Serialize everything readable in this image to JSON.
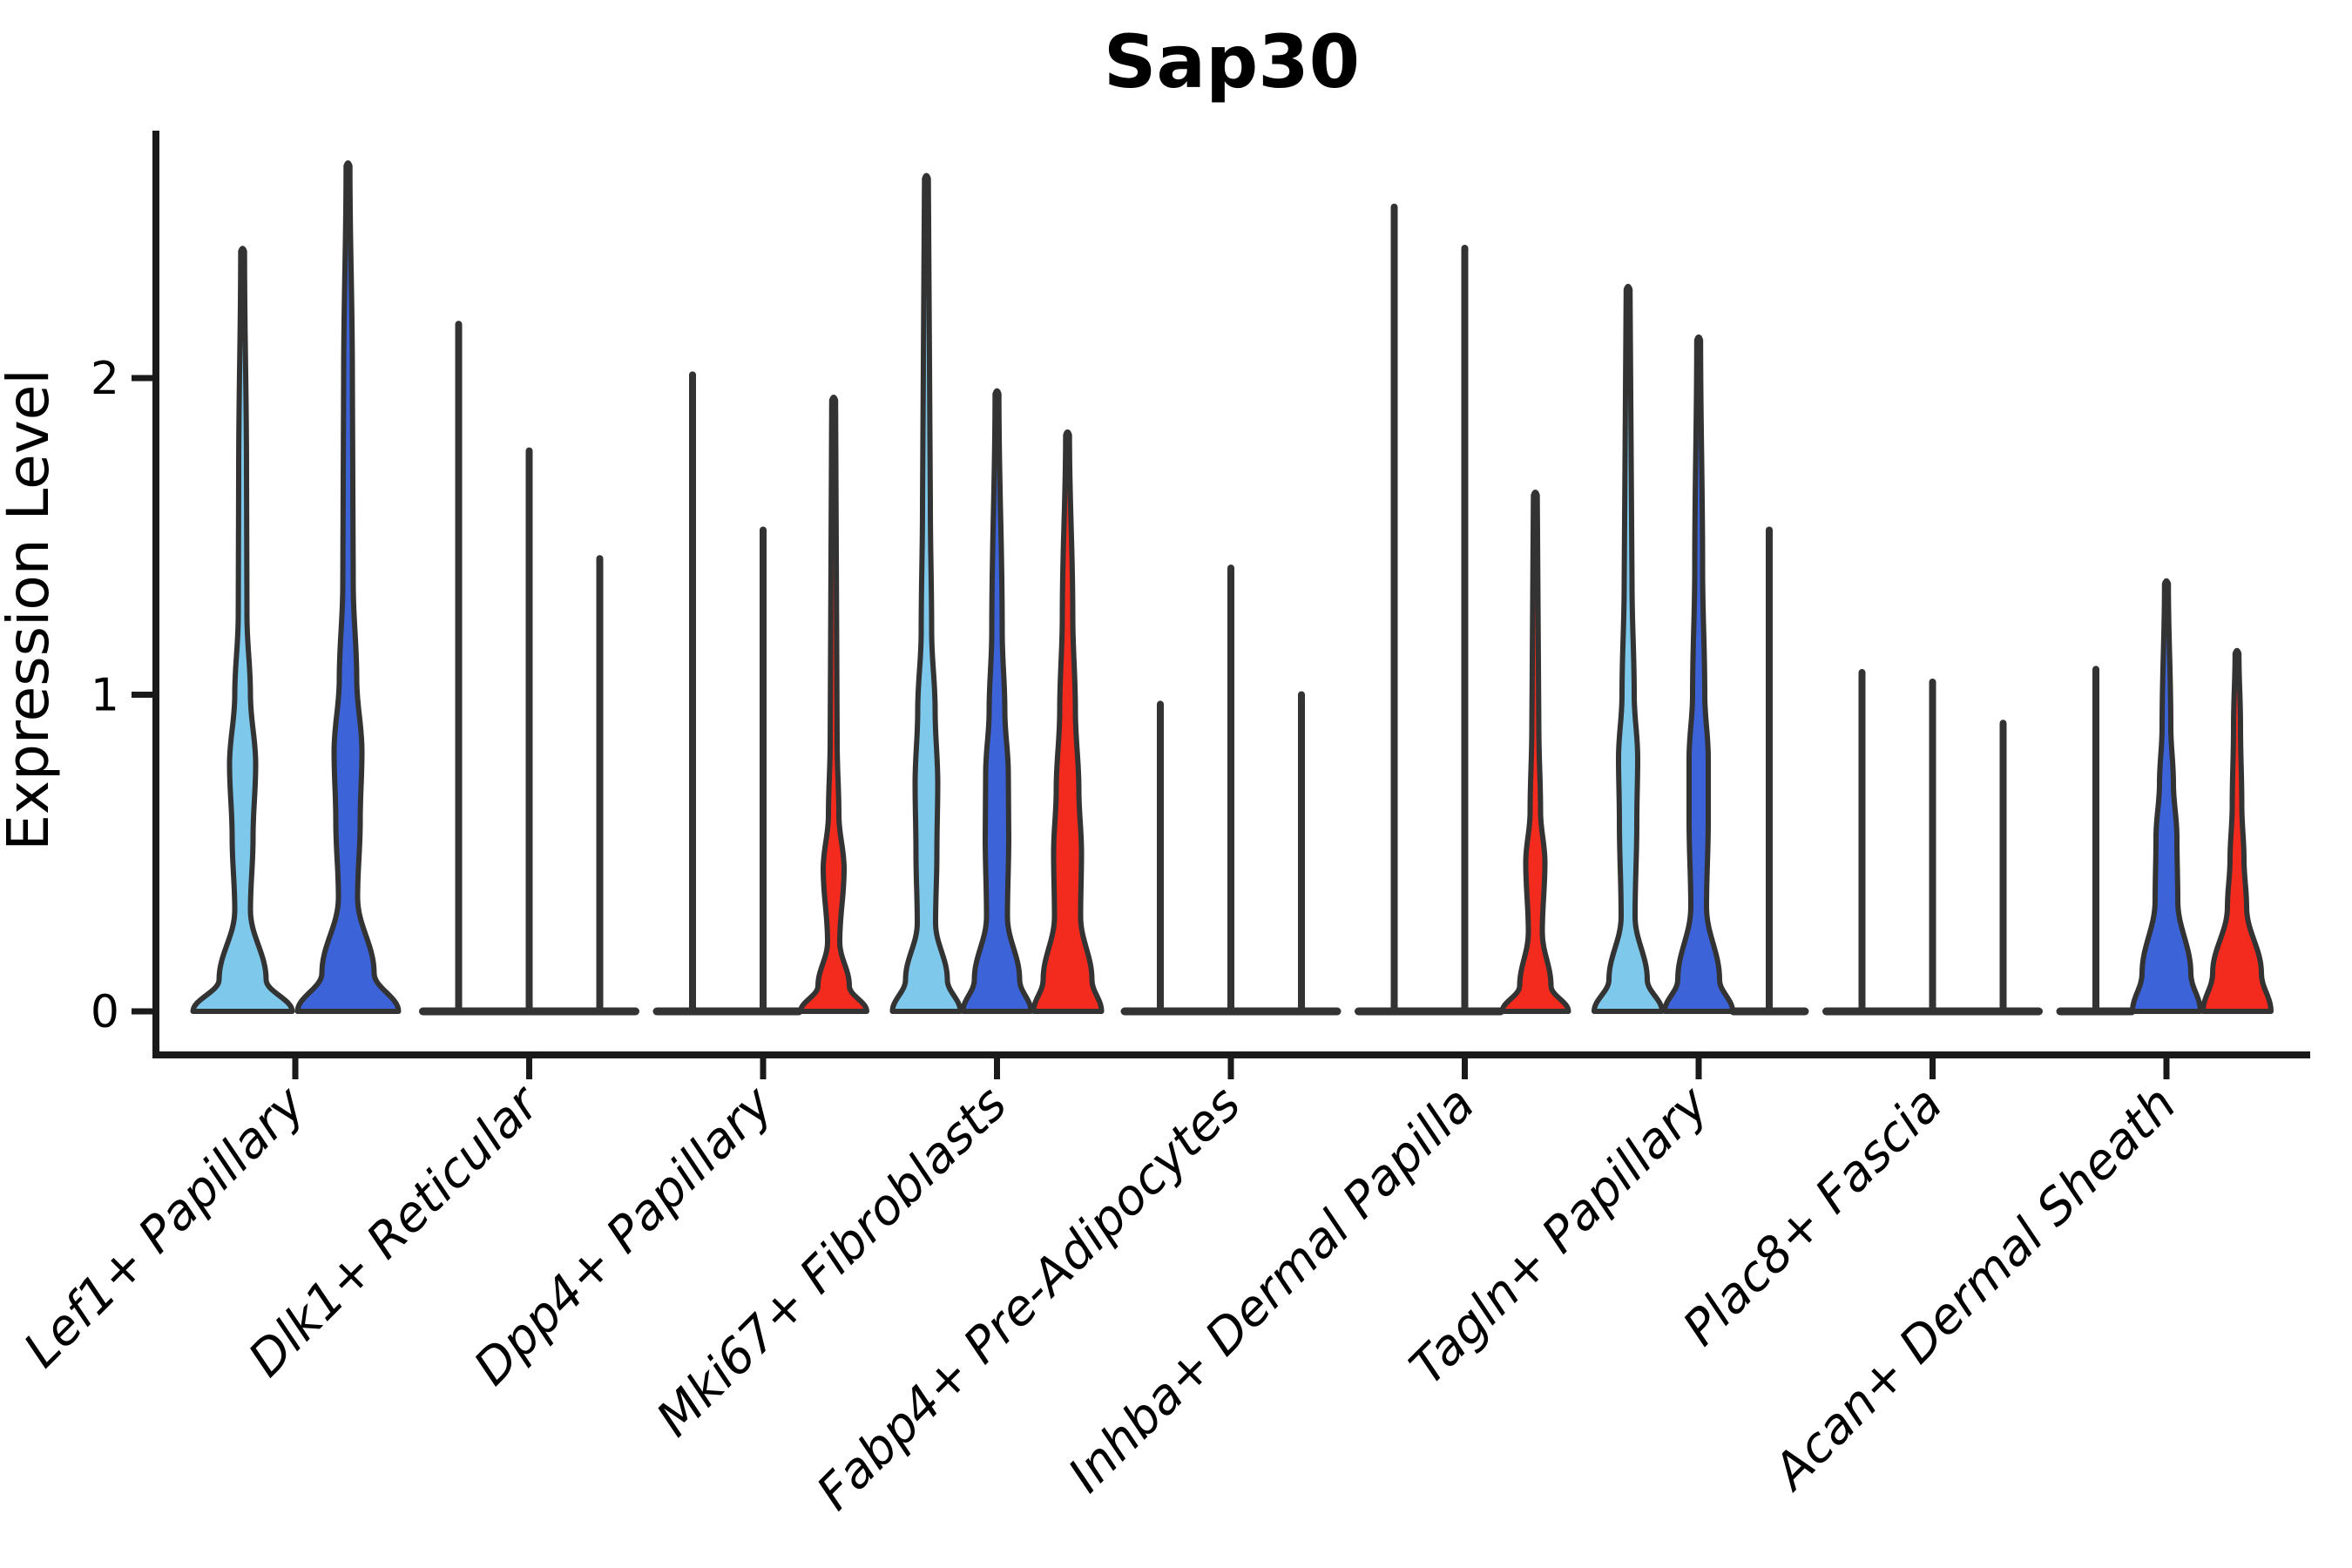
{
  "chart_data": {
    "type": "violin",
    "title": "Sap30",
    "ylabel": "Expression Level",
    "yticks": [
      0,
      1,
      2
    ],
    "ylim": [
      0,
      2.75
    ],
    "grid": false,
    "legend": "none",
    "split_colors": {
      "light_blue": "#7EC9EB",
      "dark_blue": "#3C63D8",
      "red": "#F22B1E"
    },
    "outline_color": "#333333",
    "axis_color": "#1a1a1a",
    "categories": [
      "Lef1+ Papillary",
      "Dlk1+ Reticular",
      "Dpp4+ Papillary",
      "Mki67+ Fibroblasts",
      "Fabp4+ Pre-Adipocytes",
      "Inhba+ Dermal Papilla",
      "Tagln+ Papillary",
      "Plac8+ Fascia",
      "Acan+ Dermal Sheath"
    ],
    "groups": [
      {
        "label": "Lef1+ Papillary",
        "violins": [
          {
            "split": "light_blue",
            "max": 2.4,
            "shape": "body",
            "profile": [
              [
                0,
                57
              ],
              [
                0.1,
                27
              ],
              [
                0.32,
                9
              ],
              [
                0.55,
                12
              ],
              [
                0.78,
                15
              ],
              [
                1.0,
                9
              ],
              [
                1.25,
                5
              ],
              [
                1.7,
                4.5
              ],
              [
                2.4,
                2.2
              ]
            ]
          },
          {
            "split": "dark_blue",
            "max": 2.67,
            "shape": "body",
            "profile": [
              [
                0,
                58
              ],
              [
                0.12,
                30
              ],
              [
                0.36,
                11
              ],
              [
                0.6,
                14
              ],
              [
                0.82,
                16
              ],
              [
                1.05,
                10
              ],
              [
                1.35,
                6
              ],
              [
                2.0,
                5
              ],
              [
                2.67,
                2.2
              ]
            ]
          }
        ]
      },
      {
        "label": "Dlk1+ Reticular",
        "violins": [
          {
            "split": "light_blue",
            "max": 2.17,
            "shape": "collapsed"
          },
          {
            "split": "dark_blue",
            "max": 1.77,
            "shape": "collapsed"
          },
          {
            "split": "red",
            "max": 1.43,
            "shape": "collapsed"
          }
        ]
      },
      {
        "label": "Dpp4+ Papillary",
        "violins": [
          {
            "split": "light_blue",
            "max": 2.01,
            "shape": "collapsed"
          },
          {
            "split": "dark_blue",
            "max": 1.52,
            "shape": "collapsed"
          },
          {
            "split": "red",
            "max": 1.93,
            "shape": "body",
            "profile": [
              [
                0,
                38
              ],
              [
                0.08,
                18
              ],
              [
                0.22,
                7
              ],
              [
                0.45,
                12
              ],
              [
                0.62,
                6
              ],
              [
                0.85,
                4
              ],
              [
                1.93,
                2.2
              ]
            ]
          }
        ]
      },
      {
        "label": "Mki67+ Fibroblasts",
        "violins": [
          {
            "split": "light_blue",
            "max": 2.63,
            "shape": "body",
            "profile": [
              [
                0,
                39
              ],
              [
                0.1,
                24
              ],
              [
                0.28,
                10.5
              ],
              [
                0.5,
                12
              ],
              [
                0.72,
                13
              ],
              [
                0.95,
                10
              ],
              [
                1.2,
                6
              ],
              [
                1.6,
                4.5
              ],
              [
                2.63,
                2.2
              ]
            ]
          },
          {
            "split": "dark_blue",
            "max": 1.95,
            "shape": "body",
            "profile": [
              [
                0,
                39
              ],
              [
                0.1,
                26
              ],
              [
                0.3,
                12
              ],
              [
                0.55,
                13.5
              ],
              [
                0.75,
                13
              ],
              [
                0.95,
                9
              ],
              [
                1.2,
                6
              ],
              [
                1.95,
                2.2
              ]
            ]
          },
          {
            "split": "red",
            "max": 1.82,
            "shape": "body",
            "profile": [
              [
                0,
                39
              ],
              [
                0.1,
                28
              ],
              [
                0.3,
                15
              ],
              [
                0.5,
                16
              ],
              [
                0.7,
                13
              ],
              [
                0.95,
                9
              ],
              [
                1.25,
                6
              ],
              [
                1.82,
                2.2
              ]
            ]
          }
        ]
      },
      {
        "label": "Fabp4+ Pre-Adipocytes",
        "violins": [
          {
            "split": "light_blue",
            "max": 0.97,
            "shape": "collapsed"
          },
          {
            "split": "dark_blue",
            "max": 1.4,
            "shape": "collapsed"
          },
          {
            "split": "red",
            "max": 1.0,
            "shape": "collapsed"
          }
        ]
      },
      {
        "label": "Inhba+ Dermal Papilla",
        "violins": [
          {
            "split": "light_blue",
            "max": 2.54,
            "shape": "collapsed"
          },
          {
            "split": "dark_blue",
            "max": 2.41,
            "shape": "collapsed"
          },
          {
            "split": "red",
            "max": 1.63,
            "shape": "body",
            "profile": [
              [
                0,
                38
              ],
              [
                0.08,
                18
              ],
              [
                0.25,
                8
              ],
              [
                0.47,
                11
              ],
              [
                0.63,
                6
              ],
              [
                0.9,
                4
              ],
              [
                1.63,
                2.2
              ]
            ]
          }
        ]
      },
      {
        "label": "Tagln+ Papillary",
        "violins": [
          {
            "split": "light_blue",
            "max": 2.28,
            "shape": "body",
            "profile": [
              [
                0,
                39
              ],
              [
                0.1,
                22
              ],
              [
                0.3,
                8
              ],
              [
                0.6,
                10
              ],
              [
                0.8,
                11
              ],
              [
                1.0,
                7
              ],
              [
                1.35,
                4.5
              ],
              [
                2.28,
                2.2
              ]
            ]
          },
          {
            "split": "dark_blue",
            "max": 2.12,
            "shape": "body",
            "profile": [
              [
                0,
                39
              ],
              [
                0.1,
                24
              ],
              [
                0.33,
                9
              ],
              [
                0.6,
                11
              ],
              [
                0.8,
                11
              ],
              [
                1.0,
                7
              ],
              [
                1.4,
                4.5
              ],
              [
                2.12,
                2.2
              ]
            ]
          },
          {
            "split": "red",
            "max": 1.52,
            "shape": "collapsed"
          }
        ]
      },
      {
        "label": "Plac8+ Fascia",
        "violins": [
          {
            "split": "light_blue",
            "max": 1.07,
            "shape": "collapsed"
          },
          {
            "split": "dark_blue",
            "max": 1.04,
            "shape": "collapsed"
          },
          {
            "split": "red",
            "max": 0.91,
            "shape": "collapsed"
          }
        ]
      },
      {
        "label": "Acan+ Dermal Sheath",
        "violins": [
          {
            "split": "light_blue",
            "max": 1.08,
            "shape": "collapsed"
          },
          {
            "split": "dark_blue",
            "max": 1.35,
            "shape": "body",
            "profile": [
              [
                0,
                39
              ],
              [
                0.12,
                28
              ],
              [
                0.35,
                13
              ],
              [
                0.55,
                12
              ],
              [
                0.72,
                8
              ],
              [
                0.9,
                5
              ],
              [
                1.35,
                2.2
              ]
            ]
          },
          {
            "split": "red",
            "max": 1.13,
            "shape": "body",
            "profile": [
              [
                0,
                39
              ],
              [
                0.12,
                28
              ],
              [
                0.33,
                11
              ],
              [
                0.48,
                8
              ],
              [
                0.65,
                5.5
              ],
              [
                0.9,
                4
              ],
              [
                1.13,
                2.2
              ]
            ]
          }
        ]
      }
    ]
  }
}
